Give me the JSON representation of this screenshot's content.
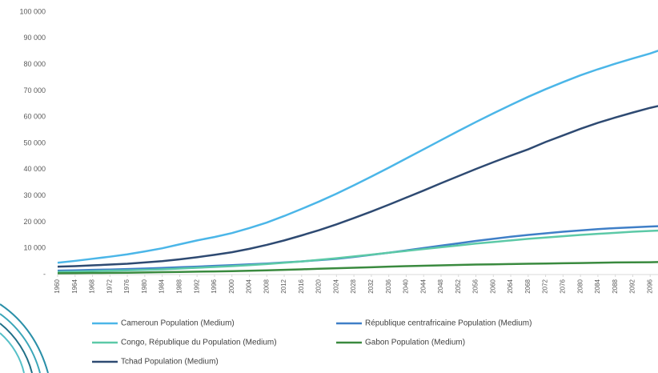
{
  "chart_data": {
    "type": "line",
    "x": [
      1960,
      1964,
      1968,
      1972,
      1976,
      1980,
      1984,
      1988,
      1992,
      1996,
      2000,
      2004,
      2008,
      2012,
      2016,
      2020,
      2024,
      2028,
      2032,
      2036,
      2040,
      2044,
      2048,
      2052,
      2056,
      2060,
      2064,
      2068,
      2072,
      2076,
      2080,
      2084,
      2088,
      2092,
      2096,
      2100
    ],
    "xlim": [
      1960,
      2100
    ],
    "xticks": [
      1960,
      1964,
      1968,
      1972,
      1976,
      1980,
      1984,
      1988,
      1992,
      1996,
      2000,
      2004,
      2008,
      2012,
      2016,
      2020,
      2024,
      2028,
      2032,
      2036,
      2040,
      2044,
      2048,
      2052,
      2056,
      2060,
      2064,
      2068,
      2072,
      2076,
      2080,
      2084,
      2088,
      2092,
      2096,
      2100
    ],
    "ylim": [
      0,
      100000
    ],
    "yticks": [
      {
        "value": 0,
        "label": "-"
      },
      {
        "value": 10000,
        "label": "10 000"
      },
      {
        "value": 20000,
        "label": "20 000"
      },
      {
        "value": 30000,
        "label": "30 000"
      },
      {
        "value": 40000,
        "label": "40 000"
      },
      {
        "value": 50000,
        "label": "50 000"
      },
      {
        "value": 60000,
        "label": "60 000"
      },
      {
        "value": 70000,
        "label": "70 000"
      },
      {
        "value": 80000,
        "label": "80 000"
      },
      {
        "value": 90000,
        "label": "90 000"
      },
      {
        "value": 100000,
        "label": "100 000"
      }
    ],
    "series": [
      {
        "name": "Cameroun  Population (Medium)",
        "color": "#4bb6e8",
        "values": [
          4500,
          5200,
          6000,
          6800,
          7700,
          8800,
          10000,
          11500,
          13000,
          14300,
          15800,
          17700,
          19800,
          22300,
          25000,
          27800,
          30800,
          34000,
          37300,
          40700,
          44200,
          47700,
          51200,
          54700,
          58100,
          61400,
          64600,
          67700,
          70600,
          73300,
          75900,
          78200,
          80300,
          82300,
          84200,
          86500
        ]
      },
      {
        "name": "République centrafricaine  Population (Medium)",
        "color": "#3f7fc7",
        "values": [
          1500,
          1600,
          1800,
          1900,
          2100,
          2300,
          2500,
          2800,
          3000,
          3300,
          3600,
          3900,
          4200,
          4600,
          5000,
          5500,
          6000,
          6700,
          7500,
          8300,
          9200,
          10100,
          11000,
          11900,
          12800,
          13600,
          14400,
          15100,
          15700,
          16300,
          16800,
          17300,
          17700,
          18000,
          18300,
          18500
        ]
      },
      {
        "name": "Congo, République du  Population (Medium)",
        "color": "#5cc9a7",
        "values": [
          1000,
          1100,
          1300,
          1500,
          1600,
          1800,
          2000,
          2300,
          2600,
          2900,
          3200,
          3600,
          4000,
          4500,
          5000,
          5600,
          6200,
          6900,
          7600,
          8300,
          9000,
          9700,
          10400,
          11100,
          11800,
          12400,
          13000,
          13600,
          14100,
          14600,
          15100,
          15500,
          15900,
          16300,
          16600,
          16900
        ]
      },
      {
        "name": "Gabon  Population (Medium)",
        "color": "#3a8a3f",
        "values": [
          500,
          550,
          600,
          650,
          700,
          800,
          900,
          1000,
          1100,
          1200,
          1300,
          1450,
          1600,
          1800,
          2000,
          2200,
          2400,
          2600,
          2800,
          3000,
          3200,
          3350,
          3500,
          3650,
          3800,
          3900,
          4000,
          4100,
          4200,
          4300,
          4400,
          4500,
          4600,
          4650,
          4700,
          4800
        ]
      },
      {
        "name": "Tchad  Population (Medium)",
        "color": "#2e4a72",
        "values": [
          3000,
          3200,
          3500,
          3800,
          4100,
          4600,
          5100,
          5800,
          6600,
          7500,
          8500,
          9800,
          11300,
          13000,
          14900,
          16900,
          19100,
          21500,
          24000,
          26600,
          29300,
          32000,
          34800,
          37500,
          40200,
          42800,
          45300,
          47700,
          50500,
          53000,
          55500,
          57800,
          59800,
          61700,
          63500,
          65000
        ]
      }
    ]
  }
}
